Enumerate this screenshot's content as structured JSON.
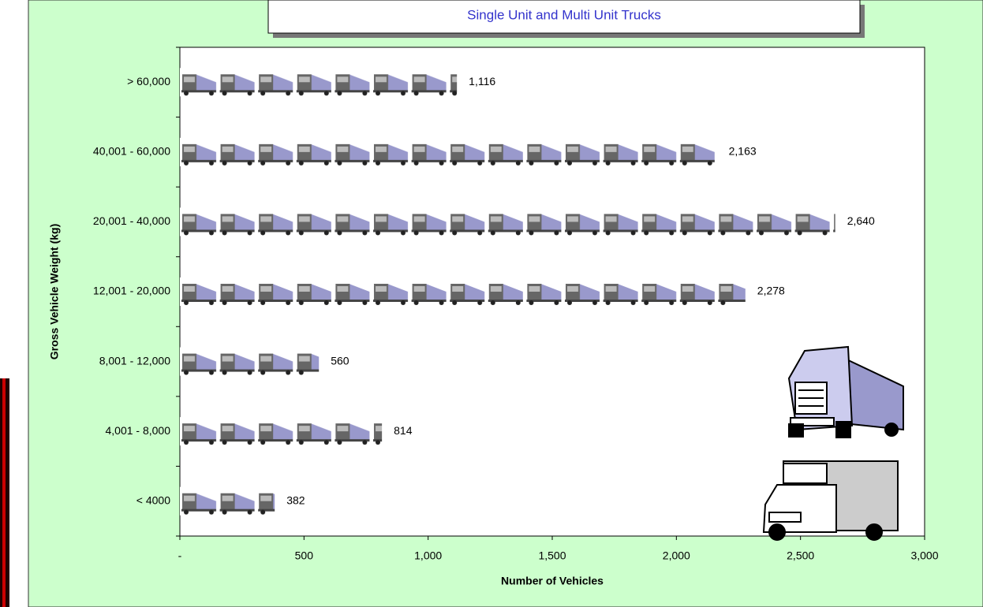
{
  "chart_data": {
    "type": "pictograph-bar",
    "title": "Single Unit and Multi Unit Trucks",
    "x_label": "Number of Vehicles",
    "y_label": "Gross Vehicle Weight (kg)",
    "categories": [
      "> 60,000",
      "40,001 - 60,000",
      "20,001 - 40,000",
      "12,001 - 20,000",
      "8,001 - 12,000",
      "4,001 - 8,000",
      "< 4000"
    ],
    "values": [
      1116,
      2163,
      2640,
      2278,
      560,
      814,
      382
    ],
    "value_labels": [
      "1,116",
      "2,163",
      "2,640",
      "2,278",
      "560",
      "814",
      "382"
    ],
    "color": "#9999cc",
    "xlim": [
      0,
      3000
    ],
    "xticks": [
      {
        "value": 0,
        "label": "-"
      },
      500,
      {
        "value": 1000,
        "label": "1,000"
      },
      {
        "value": 1500,
        "label": "1,500"
      },
      {
        "value": 2000,
        "label": "2,000"
      },
      {
        "value": 2500,
        "label": "2,500"
      },
      {
        "value": 3000,
        "label": "3,000"
      }
    ]
  }
}
